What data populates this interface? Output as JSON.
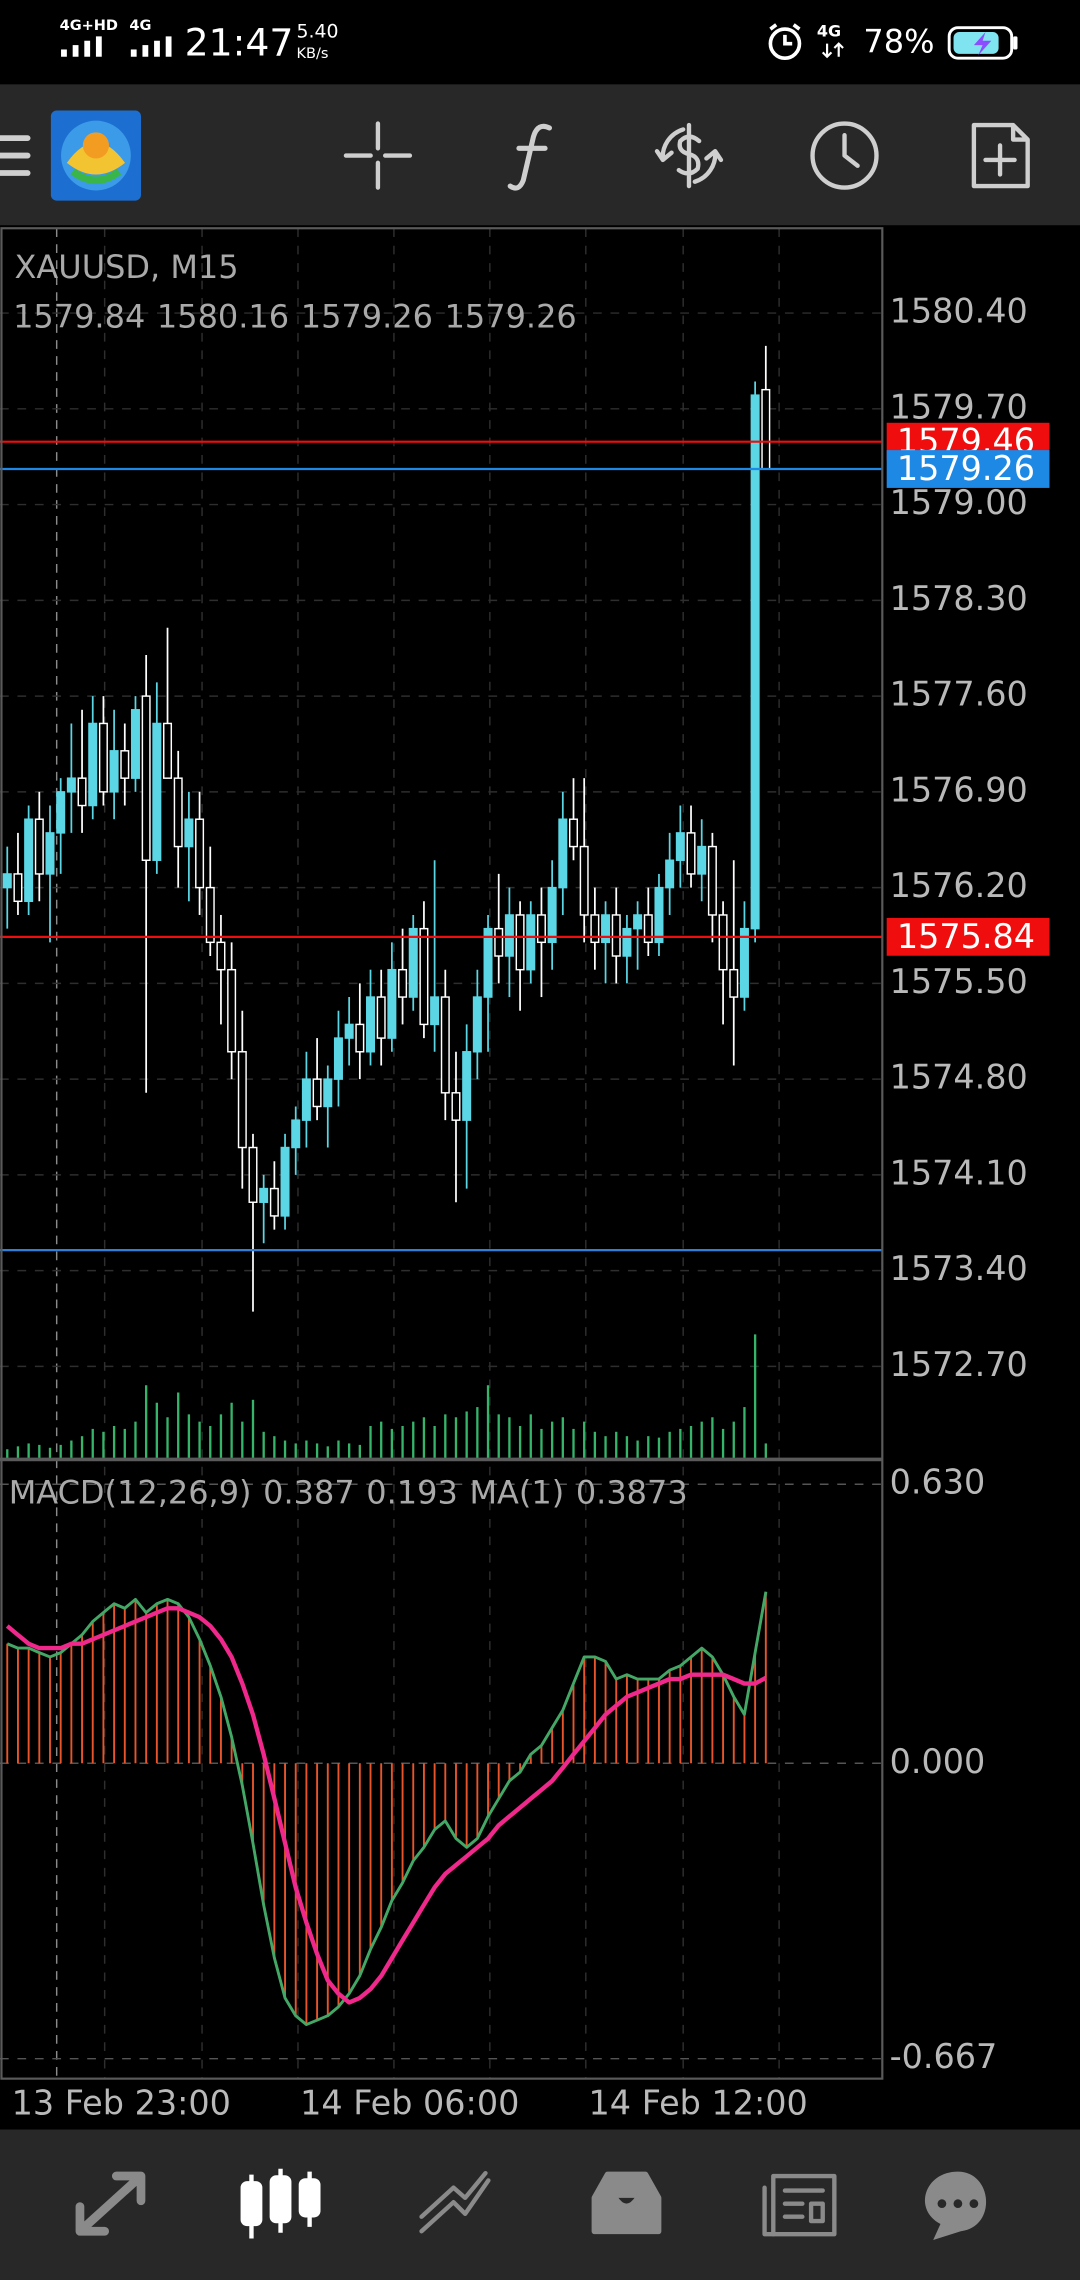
{
  "status_bar": {
    "network_main": "4G+HD",
    "network_second": "4G",
    "time": "21:47",
    "speed": "5.40",
    "speed_unit": "KB/s",
    "network_right": "4G",
    "battery": "78%"
  },
  "chart_data": {
    "type": "candlestick",
    "symbol": "XAUUSD, M15",
    "categories": [
      "13 Feb 23:00",
      null,
      null,
      null,
      null,
      null,
      null,
      null,
      null,
      null,
      null,
      null,
      null,
      null,
      null,
      null,
      null,
      null,
      null,
      null,
      null,
      null,
      null,
      null,
      null,
      null,
      null,
      "14 Feb 06:00",
      null,
      null,
      null,
      null,
      null,
      null,
      null,
      null,
      null,
      null,
      null,
      null,
      null,
      null,
      null,
      null,
      null,
      null,
      null,
      null,
      null,
      null,
      null,
      null,
      null,
      null,
      "14 Feb 12:00",
      null,
      null,
      null,
      null,
      null,
      null,
      null,
      null,
      null,
      null,
      null,
      null,
      null,
      null,
      null,
      null,
      null
    ],
    "candles": [
      [
        1576.2,
        1576.5,
        1575.9,
        1576.3
      ],
      [
        1576.3,
        1576.6,
        1576.0,
        1576.1
      ],
      [
        1576.1,
        1576.8,
        1576.0,
        1576.7
      ],
      [
        1576.7,
        1576.9,
        1576.1,
        1576.3
      ],
      [
        1576.3,
        1576.8,
        1575.8,
        1576.6
      ],
      [
        1576.6,
        1577.0,
        1576.3,
        1576.9
      ],
      [
        1576.9,
        1577.4,
        1576.6,
        1577.0
      ],
      [
        1577.0,
        1577.5,
        1576.6,
        1576.8
      ],
      [
        1576.8,
        1577.6,
        1576.7,
        1577.4
      ],
      [
        1577.4,
        1577.6,
        1576.8,
        1576.9
      ],
      [
        1576.9,
        1577.5,
        1576.7,
        1577.2
      ],
      [
        1577.2,
        1577.4,
        1576.8,
        1577.0
      ],
      [
        1577.0,
        1577.6,
        1576.9,
        1577.5
      ],
      [
        1577.6,
        1577.9,
        1574.7,
        1576.4
      ],
      [
        1576.4,
        1577.7,
        1576.3,
        1577.4
      ],
      [
        1577.4,
        1578.1,
        1577.0,
        1577.0
      ],
      [
        1577.0,
        1577.2,
        1576.2,
        1576.5
      ],
      [
        1576.5,
        1576.9,
        1576.1,
        1576.7
      ],
      [
        1576.7,
        1576.9,
        1576.0,
        1576.2
      ],
      [
        1576.2,
        1576.5,
        1575.7,
        1575.8
      ],
      [
        1575.8,
        1576.0,
        1575.2,
        1575.6
      ],
      [
        1575.6,
        1575.8,
        1574.8,
        1575.0
      ],
      [
        1575.0,
        1575.3,
        1574.0,
        1574.3
      ],
      [
        1574.3,
        1574.4,
        1573.1,
        1573.9
      ],
      [
        1573.9,
        1574.1,
        1573.6,
        1574.0
      ],
      [
        1574.0,
        1574.2,
        1573.7,
        1573.8
      ],
      [
        1573.8,
        1574.4,
        1573.7,
        1574.3
      ],
      [
        1574.3,
        1574.6,
        1574.1,
        1574.5
      ],
      [
        1574.5,
        1575.0,
        1574.3,
        1574.8
      ],
      [
        1574.8,
        1575.1,
        1574.5,
        1574.6
      ],
      [
        1574.6,
        1574.9,
        1574.3,
        1574.8
      ],
      [
        1574.8,
        1575.3,
        1574.6,
        1575.1
      ],
      [
        1575.1,
        1575.4,
        1574.9,
        1575.2
      ],
      [
        1575.2,
        1575.5,
        1574.8,
        1575.0
      ],
      [
        1575.0,
        1575.6,
        1574.9,
        1575.4
      ],
      [
        1575.4,
        1575.6,
        1574.9,
        1575.1
      ],
      [
        1575.1,
        1575.8,
        1575.0,
        1575.6
      ],
      [
        1575.6,
        1575.9,
        1575.2,
        1575.4
      ],
      [
        1575.4,
        1576.0,
        1575.3,
        1575.9
      ],
      [
        1575.9,
        1576.1,
        1575.1,
        1575.2
      ],
      [
        1575.2,
        1576.4,
        1575.0,
        1575.4
      ],
      [
        1575.4,
        1575.6,
        1574.5,
        1574.7
      ],
      [
        1574.7,
        1575.0,
        1573.9,
        1574.5
      ],
      [
        1574.5,
        1575.2,
        1574.0,
        1575.0
      ],
      [
        1575.0,
        1575.6,
        1574.8,
        1575.4
      ],
      [
        1575.4,
        1576.0,
        1575.0,
        1575.9
      ],
      [
        1575.9,
        1576.3,
        1575.5,
        1575.7
      ],
      [
        1575.7,
        1576.2,
        1575.4,
        1576.0
      ],
      [
        1576.0,
        1576.1,
        1575.3,
        1575.6
      ],
      [
        1575.6,
        1576.1,
        1575.5,
        1576.0
      ],
      [
        1576.0,
        1576.2,
        1575.4,
        1575.8
      ],
      [
        1575.8,
        1576.4,
        1575.6,
        1576.2
      ],
      [
        1576.2,
        1576.9,
        1576.0,
        1576.7
      ],
      [
        1576.7,
        1577.0,
        1576.4,
        1576.5
      ],
      [
        1576.5,
        1577.0,
        1575.8,
        1576.0
      ],
      [
        1576.0,
        1576.2,
        1575.6,
        1575.8
      ],
      [
        1575.8,
        1576.1,
        1575.5,
        1576.0
      ],
      [
        1576.0,
        1576.2,
        1575.5,
        1575.7
      ],
      [
        1575.7,
        1576.0,
        1575.5,
        1575.9
      ],
      [
        1575.9,
        1576.1,
        1575.6,
        1576.0
      ],
      [
        1576.0,
        1576.2,
        1575.7,
        1575.8
      ],
      [
        1575.8,
        1576.3,
        1575.7,
        1576.2
      ],
      [
        1576.2,
        1576.6,
        1576.0,
        1576.4
      ],
      [
        1576.4,
        1576.8,
        1576.2,
        1576.6
      ],
      [
        1576.6,
        1576.8,
        1576.2,
        1576.3
      ],
      [
        1576.3,
        1576.7,
        1576.1,
        1576.5
      ],
      [
        1576.5,
        1576.6,
        1575.8,
        1576.0
      ],
      [
        1576.0,
        1576.1,
        1575.2,
        1575.6
      ],
      [
        1575.6,
        1576.4,
        1574.9,
        1575.4
      ],
      [
        1575.4,
        1576.1,
        1575.3,
        1575.9
      ],
      [
        1575.9,
        1579.9,
        1575.8,
        1579.8
      ],
      [
        1579.84,
        1580.16,
        1579.26,
        1579.26
      ]
    ],
    "bull_color": "#5ad6e4",
    "bear_color": "#000000",
    "bear_outline": "#ffffff",
    "ylim": [
      1572.02,
      1581.02
    ],
    "yticks": [
      {
        "value": 1580.4,
        "label": "1580.40"
      },
      {
        "value": 1579.7,
        "label": "1579.70"
      },
      {
        "value": 1579.0,
        "label": "1579.00"
      },
      {
        "value": 1578.3,
        "label": "1578.30"
      },
      {
        "value": 1577.6,
        "label": "1577.60"
      },
      {
        "value": 1576.9,
        "label": "1576.90"
      },
      {
        "value": 1576.2,
        "label": "1576.20"
      },
      {
        "value": 1575.5,
        "label": "1575.50"
      },
      {
        "value": 1574.8,
        "label": "1574.80"
      },
      {
        "value": 1574.1,
        "label": "1574.10"
      },
      {
        "value": 1573.4,
        "label": "1573.40"
      },
      {
        "value": 1572.7,
        "label": "1572.70"
      }
    ],
    "grid": true,
    "lines": [
      {
        "value": 1573.55,
        "color": "#2f7fd8"
      }
    ],
    "price_tags": [
      {
        "value": 1579.46,
        "color": "#f00d0d"
      },
      {
        "value": 1579.26,
        "color": "#1e88e5"
      },
      {
        "value": 1575.84,
        "color": "#f00d0d"
      }
    ],
    "volume": {
      "color": "#35b56a",
      "values": [
        6,
        8,
        10,
        9,
        7,
        9,
        12,
        15,
        20,
        18,
        22,
        20,
        25,
        50,
        38,
        28,
        45,
        30,
        25,
        22,
        30,
        38,
        25,
        40,
        18,
        15,
        12,
        10,
        12,
        10,
        8,
        12,
        10,
        9,
        22,
        25,
        20,
        22,
        25,
        28,
        22,
        30,
        28,
        32,
        35,
        50,
        30,
        28,
        22,
        30,
        20,
        25,
        28,
        20,
        25,
        18,
        15,
        18,
        15,
        12,
        15,
        14,
        18,
        20,
        22,
        25,
        28,
        20,
        25,
        35,
        85,
        10
      ]
    },
    "macd": {
      "name": "MACD(12,26,9)",
      "ma_name": "MA(1)",
      "ylim": [
        -0.712,
        0.686
      ],
      "yticks": [
        {
          "value": 0.63,
          "label": "0.630"
        },
        {
          "value": 0,
          "label": "0.000"
        },
        {
          "value": -0.667,
          "label": "-0.667"
        }
      ],
      "histogram": {
        "color": "#e8552a",
        "values": [
          0.27,
          0.26,
          0.26,
          0.25,
          0.24,
          0.25,
          0.27,
          0.29,
          0.32,
          0.34,
          0.36,
          0.35,
          0.37,
          0.34,
          0.36,
          0.37,
          0.36,
          0.33,
          0.28,
          0.22,
          0.15,
          0.06,
          -0.05,
          -0.18,
          -0.32,
          -0.44,
          -0.53,
          -0.57,
          -0.59,
          -0.58,
          -0.57,
          -0.55,
          -0.52,
          -0.48,
          -0.42,
          -0.37,
          -0.31,
          -0.27,
          -0.22,
          -0.19,
          -0.15,
          -0.13,
          -0.17,
          -0.19,
          -0.17,
          -0.12,
          -0.08,
          -0.04,
          -0.02,
          0.02,
          0.04,
          0.08,
          0.12,
          0.18,
          0.24,
          0.24,
          0.23,
          0.19,
          0.2,
          0.19,
          0.19,
          0.19,
          0.21,
          0.22,
          0.24,
          0.26,
          0.24,
          0.2,
          0.15,
          0.11,
          0.25,
          0.387
        ]
      },
      "signal": {
        "color": "#f0288c",
        "values": [
          0.31,
          0.29,
          0.27,
          0.26,
          0.26,
          0.26,
          0.27,
          0.27,
          0.28,
          0.29,
          0.3,
          0.31,
          0.32,
          0.33,
          0.34,
          0.35,
          0.35,
          0.34,
          0.33,
          0.31,
          0.28,
          0.24,
          0.18,
          0.11,
          0.02,
          -0.08,
          -0.18,
          -0.28,
          -0.36,
          -0.43,
          -0.49,
          -0.52,
          -0.54,
          -0.53,
          -0.51,
          -0.48,
          -0.44,
          -0.4,
          -0.36,
          -0.32,
          -0.28,
          -0.25,
          -0.23,
          -0.21,
          -0.19,
          -0.17,
          -0.14,
          -0.12,
          -0.1,
          -0.08,
          -0.06,
          -0.04,
          -0.01,
          0.02,
          0.05,
          0.08,
          0.11,
          0.13,
          0.15,
          0.16,
          0.17,
          0.18,
          0.19,
          0.19,
          0.2,
          0.2,
          0.2,
          0.2,
          0.19,
          0.18,
          0.18,
          0.193
        ]
      },
      "ma": {
        "color": "#43a866",
        "values": [
          0.27,
          0.26,
          0.26,
          0.25,
          0.24,
          0.25,
          0.27,
          0.29,
          0.32,
          0.34,
          0.36,
          0.35,
          0.37,
          0.34,
          0.36,
          0.37,
          0.36,
          0.33,
          0.28,
          0.22,
          0.15,
          0.06,
          -0.05,
          -0.18,
          -0.32,
          -0.44,
          -0.53,
          -0.57,
          -0.59,
          -0.58,
          -0.57,
          -0.55,
          -0.52,
          -0.48,
          -0.42,
          -0.37,
          -0.31,
          -0.27,
          -0.22,
          -0.19,
          -0.15,
          -0.13,
          -0.17,
          -0.19,
          -0.17,
          -0.12,
          -0.08,
          -0.04,
          -0.02,
          0.02,
          0.04,
          0.08,
          0.12,
          0.18,
          0.24,
          0.24,
          0.23,
          0.19,
          0.2,
          0.19,
          0.19,
          0.19,
          0.21,
          0.22,
          0.24,
          0.26,
          0.24,
          0.2,
          0.15,
          0.11,
          0.25,
          0.3873
        ]
      }
    }
  }
}
